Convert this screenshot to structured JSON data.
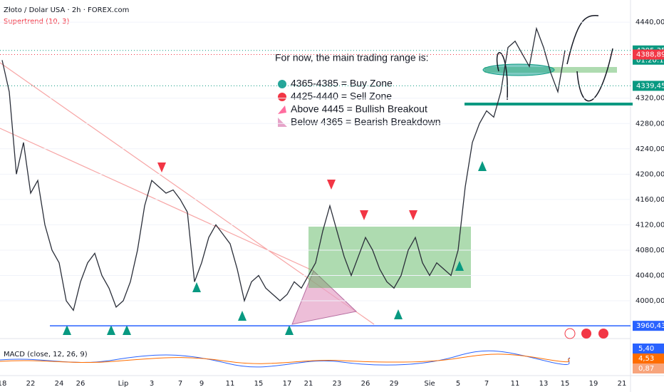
{
  "chart_data": {
    "type": "line",
    "title": "Złoto / Dolar USA · 2h · FOREX.com",
    "indicator": "Supertrend (10, 3)",
    "annotation": [
      "For now, the main trading range is:",
      "4365-4385 = Buy Zone",
      "4425-4440 = Sell Zone",
      "Above 4445 = Bullish Breakout",
      "Below 4365 = Bearish Breakdown"
    ],
    "categories": [
      "18",
      null,
      null,
      null,
      "22",
      null,
      null,
      null,
      "24",
      null,
      null,
      "26",
      null,
      null,
      null,
      null,
      null,
      "Lip",
      null,
      null,
      null,
      "3",
      null,
      null,
      null,
      "7",
      null,
      null,
      "9",
      null,
      null,
      null,
      "11",
      null,
      null,
      null,
      "15",
      null,
      null,
      null,
      "17",
      null,
      null,
      "21",
      null,
      null,
      null,
      "23",
      null,
      null,
      null,
      "26",
      null,
      null,
      null,
      "29",
      null,
      null,
      null,
      null,
      "Sie",
      null,
      null,
      null,
      "5",
      null,
      null,
      null,
      "7",
      null,
      null,
      null,
      "11",
      null,
      null,
      null,
      "13",
      null,
      null,
      "15",
      null,
      null,
      null,
      "19",
      null,
      null,
      null,
      "21"
    ],
    "series": [
      {
        "name": "Złoto / Dolar USA",
        "color": "#2a2e39",
        "values": [
          4380,
          4330,
          4200,
          4250,
          4170,
          4190,
          4120,
          4080,
          4060,
          4000,
          3985,
          4030,
          4060,
          4075,
          4040,
          4020,
          3990,
          4000,
          4030,
          4080,
          4150,
          4190,
          4180,
          4170,
          4175,
          4160,
          4140,
          4030,
          4060,
          4100,
          4120,
          4105,
          4090,
          4050,
          4000,
          4030,
          4040,
          4020,
          4010,
          4000,
          4010,
          4030,
          4020,
          4040,
          4060,
          4110,
          4150,
          4110,
          4070,
          4040,
          4070,
          4100,
          4080,
          4050,
          4030,
          4020,
          4040,
          4080,
          4100,
          4060,
          4040,
          4060,
          4050,
          4040,
          4080,
          4180,
          4250,
          4280,
          4300,
          4290,
          4330,
          4400,
          4410,
          4390,
          4370,
          4430,
          4400,
          4360,
          4330,
          4395.35,
          null,
          null,
          null,
          null,
          null,
          null,
          null,
          null
        ]
      }
    ],
    "ylim": [
      3955,
      4475
    ],
    "yticks": [
      {
        "value": 4000,
        "label": "4000,00"
      },
      {
        "value": 4040,
        "label": "4040,00"
      },
      {
        "value": 4080,
        "label": "4080,00"
      },
      {
        "value": 4120,
        "label": "4120,00"
      },
      {
        "value": 4160,
        "label": "4160,00"
      },
      {
        "value": 4200,
        "label": "4200,00"
      },
      {
        "value": 4240,
        "label": "4240,00"
      },
      {
        "value": 4280,
        "label": "4280,00"
      },
      {
        "value": 4320,
        "label": "4320,00"
      },
      {
        "value": 4440,
        "label": "4440,00"
      }
    ],
    "price_labels": [
      {
        "value": 4395.35,
        "label": "4395,35",
        "color": "#089981"
      },
      {
        "value": 4388.89,
        "label": "4388,89",
        "color": "#f23645"
      },
      {
        "value": 4339.45,
        "label": "4339,45",
        "color": "#089981"
      },
      {
        "value": 3960.43,
        "label": "3960,43",
        "color": "#2962ff"
      }
    ],
    "countdown": "01:20:15",
    "macd": {
      "title": "MACD (close, 12, 26, 9)",
      "labels": [
        {
          "value": 5.4,
          "label": "5,40",
          "color": "#2962ff"
        },
        {
          "value": 4.53,
          "label": "4,53",
          "color": "#ff6d00"
        },
        {
          "value": 0.87,
          "label": "0,87",
          "color": "#f7a57d"
        }
      ]
    }
  }
}
